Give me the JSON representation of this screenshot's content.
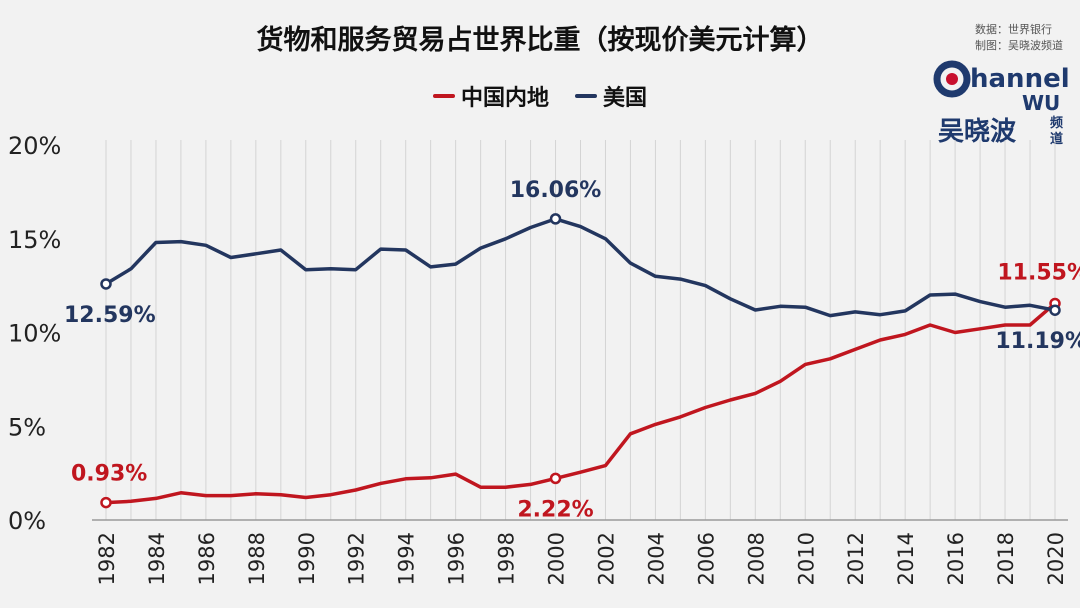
{
  "header": {
    "title": "货物和服务贸易占世界比重（按现价美元计算）",
    "source_line1": "数据：世界银行",
    "source_line2": "制图：吴晓波频道"
  },
  "logo": {
    "top_text": "hannel",
    "mid_text": "WU",
    "brand": "吴晓波",
    "side1": "频",
    "side2": "道",
    "colors": {
      "navy": "#1f3a6e",
      "red": "#c8102e"
    }
  },
  "chart_data": {
    "type": "line",
    "title": "货物和服务贸易占世界比重（按现价美元计算）",
    "x": [
      1982,
      1983,
      1984,
      1985,
      1986,
      1987,
      1988,
      1989,
      1990,
      1991,
      1992,
      1993,
      1994,
      1995,
      1996,
      1997,
      1998,
      1999,
      2000,
      2001,
      2002,
      2003,
      2004,
      2005,
      2006,
      2007,
      2008,
      2009,
      2010,
      2011,
      2012,
      2013,
      2014,
      2015,
      2016,
      2017,
      2018,
      2019,
      2020
    ],
    "x_tick_labels": [
      "1982",
      "1984",
      "1986",
      "1988",
      "1990",
      "1992",
      "1994",
      "1996",
      "1998",
      "2000",
      "2002",
      "2004",
      "2006",
      "2008",
      "2010",
      "2012",
      "2014",
      "2016",
      "2018",
      "2020"
    ],
    "y_tick_labels": [
      "0%",
      "5%",
      "10%",
      "15%",
      "20%"
    ],
    "ylim": [
      0,
      20
    ],
    "grid": "vertical",
    "legend": "top-center",
    "series": [
      {
        "name": "中国内地",
        "color": "#c0161f",
        "values": [
          0.93,
          1.0,
          1.15,
          1.45,
          1.3,
          1.3,
          1.4,
          1.35,
          1.2,
          1.35,
          1.6,
          1.95,
          2.2,
          2.25,
          2.45,
          1.75,
          1.75,
          1.9,
          2.22,
          2.55,
          2.9,
          4.6,
          5.1,
          5.5,
          6.0,
          6.4,
          6.75,
          7.4,
          8.3,
          8.6,
          9.1,
          9.6,
          9.9,
          10.4,
          10.0,
          10.2,
          10.4,
          10.4,
          11.55
        ]
      },
      {
        "name": "美国",
        "color": "#23365f",
        "values": [
          12.59,
          13.4,
          14.8,
          14.85,
          14.65,
          14.0,
          14.2,
          14.4,
          13.35,
          13.4,
          13.35,
          14.45,
          14.4,
          13.5,
          13.65,
          14.5,
          15.0,
          15.6,
          16.06,
          15.65,
          15.0,
          13.7,
          13.0,
          12.85,
          12.5,
          11.8,
          11.2,
          11.4,
          11.35,
          10.9,
          11.1,
          10.95,
          11.15,
          12.0,
          12.05,
          11.65,
          11.35,
          11.45,
          11.19
        ]
      }
    ],
    "annotations": [
      {
        "series": "中国内地",
        "x": 1982,
        "text": "0.93%"
      },
      {
        "series": "中国内地",
        "x": 2000,
        "text": "2.22%"
      },
      {
        "series": "中国内地",
        "x": 2020,
        "text": "11.55%"
      },
      {
        "series": "美国",
        "x": 1982,
        "text": "12.59%"
      },
      {
        "series": "美国",
        "x": 2000,
        "text": "16.06%"
      },
      {
        "series": "美国",
        "x": 2020,
        "text": "11.19%"
      }
    ]
  }
}
